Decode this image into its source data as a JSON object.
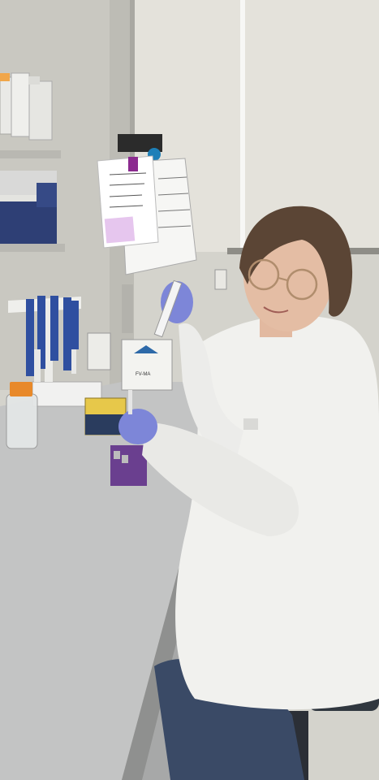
{
  "scene": {
    "kind": "photograph",
    "colors": {
      "wall": "#d8d6cf",
      "window": "#e3e1da",
      "bench": "#c4c5c4",
      "coat": "#f1f1ee",
      "glove": "#7d86d8",
      "jeans": "#3a4a66",
      "tip_rack": "#6a3f8f",
      "tube_box": "#e7c84a",
      "bottle_cap": "#e8892a",
      "pipette_blue": "#2f4fa0",
      "paper": "#f6f6f4",
      "sticky_note": "#e6c6ee"
    },
    "elements": [
      "shelves-with-bottles",
      "pipette-rack",
      "reagent-bottle",
      "lab-bench",
      "tip-rack",
      "tube-box",
      "tissue-box",
      "clipped-protocol-sheets",
      "scientist-in-lab-coat",
      "stool"
    ]
  },
  "tissue_box": {
    "label": "FV-MA"
  }
}
